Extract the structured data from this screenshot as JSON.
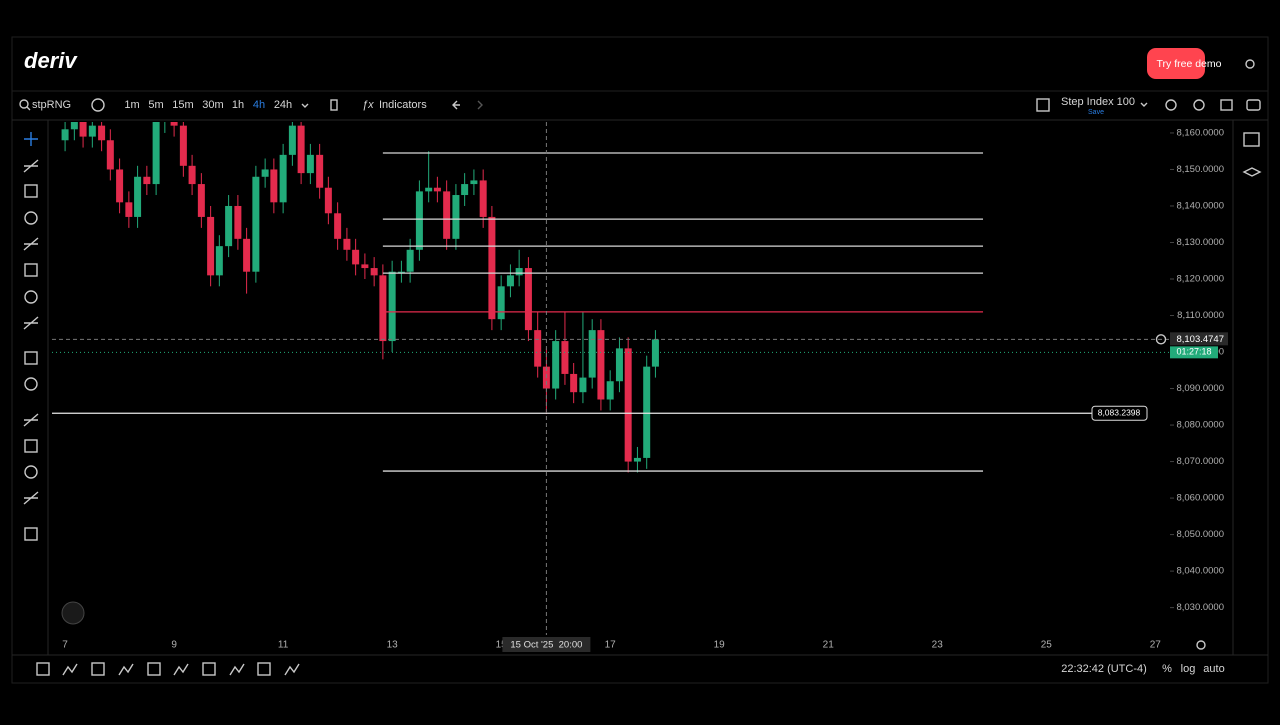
{
  "header": {
    "logo": "deriv",
    "demo_button": "Try free demo"
  },
  "toolbar": {
    "symbol": "stpRNG",
    "intervals": [
      "1m",
      "5m",
      "15m",
      "30m",
      "1h",
      "4h",
      "24h"
    ],
    "active_interval_index": 5,
    "indicators": "Indicators",
    "instrument": "Step Index 100",
    "save": "Save"
  },
  "chart_data": {
    "type": "candlestick",
    "x": [
      7,
      7.17,
      7.33,
      7.5,
      7.67,
      7.83,
      8,
      8.17,
      8.33,
      8.5,
      8.67,
      8.83,
      9,
      9.17,
      9.33,
      9.5,
      9.67,
      9.83,
      10,
      10.17,
      10.33,
      10.5,
      10.67,
      10.83,
      11,
      11.17,
      11.33,
      11.5,
      11.67,
      11.83,
      12,
      12.17,
      12.33,
      12.5,
      12.67,
      12.83,
      13,
      13.17,
      13.33,
      13.5,
      13.67,
      13.83,
      14,
      14.17,
      14.33,
      14.5,
      14.67,
      14.83,
      15,
      15.17,
      15.33,
      15.5,
      15.67,
      15.83,
      16,
      16.17,
      16.33,
      16.5,
      16.67,
      16.83,
      17,
      17.17,
      17.33,
      17.5,
      17.67,
      17.83
    ],
    "open": [
      8158,
      8161,
      8163,
      8159,
      8162,
      8158,
      8150,
      8141,
      8137,
      8148,
      8146,
      8163,
      8164,
      8162,
      8151,
      8146,
      8137,
      8121,
      8129,
      8140,
      8131,
      8122,
      8148,
      8150,
      8141,
      8154,
      8162,
      8149,
      8154,
      8145,
      8138,
      8131,
      8128,
      8124,
      8123,
      8121,
      8103,
      8122,
      8122,
      8128,
      8144,
      8145,
      8144,
      8131,
      8143,
      8146,
      8147,
      8137,
      8109,
      8118,
      8121,
      8123,
      8106,
      8096,
      8090,
      8103,
      8094,
      8089,
      8093,
      8106,
      8087,
      8092,
      8101,
      8070,
      8071,
      8096
    ],
    "high": [
      8164,
      8166,
      8166,
      8165,
      8165,
      8161,
      8153,
      8144,
      8151,
      8151,
      8166,
      8167,
      8167,
      8165,
      8154,
      8149,
      8140,
      8132,
      8143,
      8143,
      8134,
      8151,
      8153,
      8153,
      8157,
      8165,
      8165,
      8157,
      8157,
      8148,
      8141,
      8134,
      8131,
      8127,
      8126,
      8124,
      8125,
      8125,
      8131,
      8147,
      8155,
      8148,
      8147,
      8146,
      8149,
      8150,
      8150,
      8140,
      8121,
      8124,
      8128,
      8126,
      8111,
      8101,
      8106,
      8111,
      8097,
      8111,
      8109,
      8109,
      8095,
      8104,
      8104,
      8074,
      8099,
      8106
    ],
    "low": [
      8155,
      8158,
      8156,
      8156,
      8155,
      8147,
      8138,
      8134,
      8134,
      8143,
      8143,
      8160,
      8159,
      8148,
      8143,
      8134,
      8118,
      8118,
      8126,
      8128,
      8116,
      8119,
      8145,
      8138,
      8138,
      8151,
      8146,
      8146,
      8142,
      8135,
      8128,
      8125,
      8121,
      8120,
      8118,
      8098,
      8100,
      8119,
      8119,
      8125,
      8141,
      8141,
      8128,
      8128,
      8140,
      8143,
      8134,
      8106,
      8106,
      8115,
      8118,
      8103,
      8093,
      8083,
      8087,
      8091,
      8086,
      8086,
      8090,
      8084,
      8084,
      8089,
      8067,
      8067,
      8068,
      8093
    ],
    "close": [
      8161,
      8163,
      8159,
      8162,
      8158,
      8150,
      8141,
      8137,
      8148,
      8146,
      8163,
      8164,
      8162,
      8151,
      8146,
      8137,
      8121,
      8129,
      8140,
      8131,
      8122,
      8148,
      8150,
      8141,
      8154,
      8162,
      8149,
      8154,
      8145,
      8138,
      8131,
      8128,
      8124,
      8123,
      8121,
      8103,
      8122,
      8122,
      8128,
      8144,
      8145,
      8144,
      8131,
      8143,
      8146,
      8147,
      8137,
      8109,
      8118,
      8121,
      8123,
      8106,
      8096,
      8090,
      8103,
      8094,
      8089,
      8093,
      8106,
      8087,
      8092,
      8101,
      8070,
      8071,
      8096,
      8103.47
    ],
    "up_color": "#22ab7a",
    "down_color": "#e32b4d",
    "xlim": [
      6.76,
      27.27
    ],
    "ylim": [
      8022.5,
      8163
    ],
    "xticks": [
      7,
      9,
      11,
      13,
      15,
      17,
      19,
      21,
      23,
      25,
      27
    ],
    "yticks": [
      {
        "value": 8160,
        "label": "8,160.0000"
      },
      {
        "value": 8150,
        "label": "8,150.0000"
      },
      {
        "value": 8140,
        "label": "8,140.0000"
      },
      {
        "value": 8130,
        "label": "8,130.0000"
      },
      {
        "value": 8120,
        "label": "8,120.0000"
      },
      {
        "value": 8110,
        "label": "8,110.0000"
      },
      {
        "value": 8100,
        "label": "8,100.0000"
      },
      {
        "value": 8090,
        "label": "8,090.0000"
      },
      {
        "value": 8080,
        "label": "8,080.0000"
      },
      {
        "value": 8070,
        "label": "8,070.0000"
      },
      {
        "value": 8060,
        "label": "8,060.0000"
      },
      {
        "value": 8050,
        "label": "8,050.0000"
      },
      {
        "value": 8040,
        "label": "8,040.0000"
      },
      {
        "value": 8030,
        "label": "8,030.0000"
      }
    ],
    "levels": [
      8154.5,
      8136.4,
      8129,
      8121.6,
      8067.4
    ],
    "level_red": 8111,
    "levels_x": [
      12.83,
      23.84
    ],
    "price_marker": {
      "value": 8083.2398,
      "label": "8,083.2398"
    },
    "current_price": {
      "value": 8103.4747,
      "label": "8,103.4747"
    },
    "countdown": "01:27:18",
    "crosshair": {
      "x": 15.83,
      "label": "15 Oct '25  20:00"
    }
  },
  "footer": {
    "clock": "22:32:42 (UTC-4)",
    "percent": "%",
    "log": "log",
    "auto": "auto"
  }
}
